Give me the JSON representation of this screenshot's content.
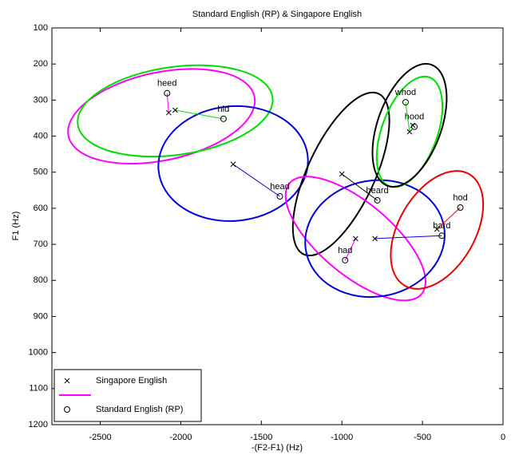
{
  "chart_data": {
    "type": "scatter",
    "title": "Standard English (RP) & Singapore English",
    "xlabel": "-(F2-F1) (Hz)",
    "ylabel": "F1 (Hz)",
    "xlim": [
      -2800,
      0
    ],
    "ylim": [
      100,
      1200
    ],
    "y_reversed": true,
    "xticks": [
      -2500,
      -2000,
      -1500,
      -1000,
      -500,
      0
    ],
    "yticks": [
      100,
      200,
      300,
      400,
      500,
      600,
      700,
      800,
      900,
      1000,
      1100,
      1200
    ],
    "legend_position": "lower left",
    "legend": [
      {
        "label": "Singapore English",
        "marker": "x",
        "color": "#000000"
      },
      {
        "label": null,
        "marker": "line",
        "color": "#ff00ff"
      },
      {
        "label": "Standard English (RP)",
        "marker": "o",
        "color": "#000000"
      }
    ],
    "vowels": [
      {
        "label": "heed",
        "color": "#ff00ff",
        "singapore": [
          -2075,
          335
        ],
        "rp": [
          -2085,
          281
        ],
        "ellipse": {
          "cx": -2120,
          "cy": 345,
          "rx": 590,
          "ry": 122,
          "angle": -12
        }
      },
      {
        "label": "hid",
        "color": "#00dd00",
        "singapore": [
          -2035,
          328
        ],
        "rp": [
          -1735,
          352
        ],
        "ellipse": {
          "cx": -2035,
          "cy": 330,
          "rx": 610,
          "ry": 122,
          "angle": -8
        }
      },
      {
        "label": "head",
        "color": "#0000dd",
        "singapore": [
          -1675,
          478
        ],
        "rp": [
          -1385,
          567
        ],
        "ellipse": {
          "cx": -1675,
          "cy": 476,
          "rx": 465,
          "ry": 159,
          "angle": -5
        }
      },
      {
        "label": "heard",
        "color": "#000000",
        "singapore": [
          -1000,
          505
        ],
        "rp": [
          -780,
          578
        ],
        "ellipse": {
          "cx": -1005,
          "cy": 505,
          "rx": 550,
          "ry": 93,
          "angle": -65
        }
      },
      {
        "label": "had",
        "color": "#ff00ff",
        "singapore": [
          -915,
          684
        ],
        "rp": [
          -980,
          744
        ],
        "ellipse": {
          "cx": -915,
          "cy": 684,
          "rx": 535,
          "ry": 100,
          "angle": 40
        }
      },
      {
        "label": "hard",
        "color": "#0000dd",
        "singapore": [
          -795,
          684
        ],
        "rp": [
          -380,
          676
        ],
        "ellipse": {
          "cx": -795,
          "cy": 684,
          "rx": 435,
          "ry": 161,
          "angle": -10
        }
      },
      {
        "label": "hod",
        "color": "#ee0000",
        "singapore": [
          -410,
          658
        ],
        "rp": [
          -265,
          598
        ],
        "ellipse": {
          "cx": -410,
          "cy": 660,
          "rx": 400,
          "ry": 106,
          "angle": -60
        }
      },
      {
        "label": "whod",
        "color": "#00dd00",
        "singapore": [
          -580,
          388
        ],
        "rp": [
          -605,
          306
        ],
        "ellipse": {
          "cx": -580,
          "cy": 388,
          "rx": 360,
          "ry": 77,
          "angle": -70
        }
      },
      {
        "label": "hood",
        "color": "#000000",
        "singapore": [
          -560,
          370
        ],
        "rp": [
          -550,
          374
        ],
        "ellipse": {
          "cx": -580,
          "cy": 370,
          "rx": 400,
          "ry": 88,
          "angle": -70
        }
      }
    ]
  }
}
